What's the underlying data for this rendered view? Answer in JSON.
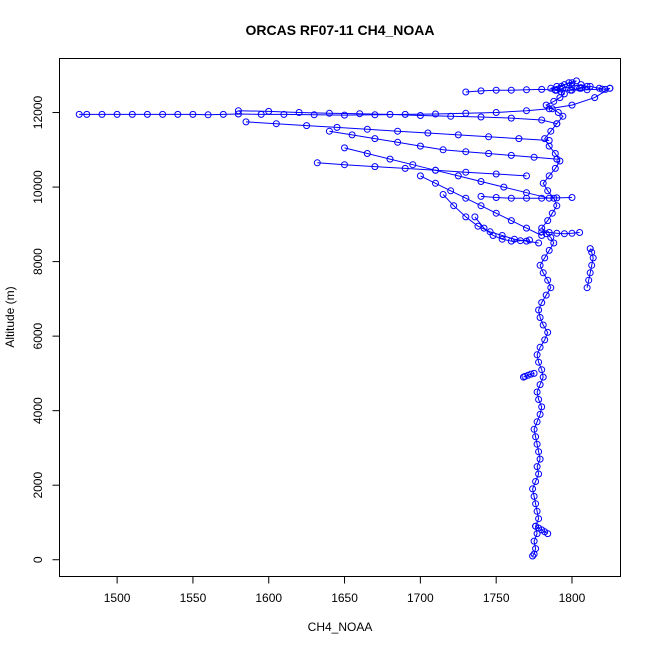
{
  "chart_data": {
    "type": "scatter",
    "title": "ORCAS RF07-11 CH4_NOAA",
    "xlabel": "CH4_NOAA",
    "ylabel": "Altitude (m)",
    "xlim": [
      1462,
      1832
    ],
    "ylim": [
      -450,
      13450
    ],
    "xticks": [
      1500,
      1550,
      1600,
      1650,
      1700,
      1750,
      1800
    ],
    "yticks": [
      0,
      2000,
      4000,
      6000,
      8000,
      10000,
      12000
    ],
    "grid": false,
    "legend": "none",
    "color": "#0000ff",
    "marker": "open-circle",
    "lines_connecting_points": true,
    "series": [
      {
        "x": [
          1774,
          1775,
          1776,
          1775,
          1777,
          1776,
          1778,
          1777,
          1776,
          1775,
          1774,
          1776,
          1778,
          1777,
          1779,
          1778,
          1777,
          1776,
          1775,
          1777,
          1779,
          1780,
          1778,
          1777,
          1779,
          1781,
          1780,
          1778,
          1777,
          1779,
          1782,
          1784,
          1781,
          1779,
          1778,
          1780,
          1783,
          1786,
          1784,
          1781,
          1779,
          1782,
          1785,
          1788,
          1786,
          1783,
          1780,
          1784,
          1787,
          1790,
          1788,
          1784,
          1781,
          1785,
          1789,
          1792,
          1789,
          1785,
          1782,
          1786,
          1790,
          1794,
          1791,
          1787,
          1783,
          1788,
          1792,
          1795,
          1793,
          1789,
          1786,
          1790,
          1795,
          1800,
          1803,
          1798,
          1793,
          1789,
          1794,
          1800,
          1806,
          1810,
          1805,
          1799,
          1806,
          1812,
          1818,
          1822,
          1825
        ],
        "y": [
          100,
          150,
          300,
          500,
          700,
          900,
          1100,
          1300,
          1500,
          1700,
          1900,
          2100,
          2300,
          2500,
          2700,
          2900,
          3100,
          3300,
          3500,
          3700,
          3900,
          4100,
          4300,
          4500,
          4700,
          4900,
          5100,
          5300,
          5500,
          5700,
          5900,
          6100,
          6300,
          6500,
          6700,
          6900,
          7100,
          7300,
          7500,
          7700,
          7900,
          8100,
          8300,
          8500,
          8650,
          8750,
          8900,
          9100,
          9300,
          9500,
          9700,
          9900,
          10100,
          10300,
          10500,
          10700,
          10900,
          11100,
          11300,
          11500,
          11700,
          11900,
          12000,
          12100,
          12200,
          12300,
          12400,
          12500,
          12550,
          12600,
          12650,
          12700,
          12750,
          12800,
          12850,
          12800,
          12700,
          12600,
          12650,
          12700,
          12750,
          12700,
          12650,
          12600,
          12650,
          12700,
          12650,
          12620,
          12650
        ]
      },
      {
        "x": [
          1825,
          1815,
          1800,
          1785,
          1770,
          1750,
          1730,
          1710,
          1690,
          1670,
          1650,
          1630,
          1610,
          1595,
          1580,
          1570,
          1560,
          1550,
          1540,
          1530,
          1520,
          1510,
          1500,
          1490,
          1480,
          1475
        ],
        "y": [
          12650,
          12400,
          12200,
          12100,
          12050,
          12000,
          11980,
          11960,
          11950,
          11940,
          11930,
          11940,
          11950,
          11950,
          11960,
          11950,
          11940,
          11950,
          11950,
          11950,
          11950,
          11950,
          11950,
          11950,
          11950,
          11950
        ]
      },
      {
        "x": [
          1580,
          1600,
          1620,
          1640,
          1660,
          1680,
          1700,
          1720,
          1740,
          1760,
          1780,
          1790
        ],
        "y": [
          12050,
          12030,
          12000,
          11980,
          11970,
          11950,
          11920,
          11900,
          11880,
          11850,
          11800,
          11700
        ]
      },
      {
        "x": [
          1585,
          1605,
          1625,
          1645,
          1665,
          1685,
          1705,
          1725,
          1745,
          1765,
          1785
        ],
        "y": [
          11750,
          11700,
          11650,
          11600,
          11550,
          11500,
          11450,
          11400,
          11350,
          11300,
          11250
        ]
      },
      {
        "x": [
          1640,
          1655,
          1670,
          1685,
          1700,
          1715,
          1730,
          1745,
          1760,
          1775,
          1790
        ],
        "y": [
          11500,
          11400,
          11300,
          11200,
          11100,
          11000,
          10950,
          10900,
          10850,
          10800,
          10750
        ]
      },
      {
        "x": [
          1632,
          1650,
          1670,
          1690,
          1710,
          1730,
          1750,
          1770
        ],
        "y": [
          10650,
          10600,
          10550,
          10500,
          10450,
          10400,
          10350,
          10300
        ]
      },
      {
        "x": [
          1650,
          1665,
          1680,
          1695,
          1710,
          1725,
          1740,
          1755,
          1770,
          1785
        ],
        "y": [
          11050,
          10900,
          10750,
          10600,
          10450,
          10300,
          10150,
          10000,
          9850,
          9700
        ]
      },
      {
        "x": [
          1700,
          1710,
          1720,
          1730,
          1740,
          1750,
          1760,
          1770,
          1780
        ],
        "y": [
          10300,
          10100,
          9900,
          9700,
          9500,
          9300,
          9100,
          8900,
          8700
        ]
      },
      {
        "x": [
          1715,
          1722,
          1730,
          1738,
          1746,
          1754,
          1762,
          1770,
          1778
        ],
        "y": [
          9800,
          9500,
          9200,
          8950,
          8800,
          8700,
          8600,
          8550,
          8500
        ]
      },
      {
        "x": [
          1736,
          1742,
          1748,
          1754,
          1760,
          1766,
          1772
        ],
        "y": [
          9200,
          8900,
          8700,
          8600,
          8550,
          8560,
          8580
        ]
      },
      {
        "x": [
          1740,
          1750,
          1760,
          1770,
          1780,
          1790,
          1800
        ],
        "y": [
          9750,
          9720,
          9700,
          9700,
          9700,
          9710,
          9720
        ]
      },
      {
        "x": [
          1780,
          1785,
          1790,
          1795,
          1800,
          1805
        ],
        "y": [
          8800,
          8780,
          8760,
          8750,
          8760,
          8780
        ]
      },
      {
        "x": [
          1810,
          1811,
          1812,
          1813,
          1814,
          1813,
          1812
        ],
        "y": [
          7300,
          7500,
          7700,
          7900,
          8100,
          8250,
          8350
        ]
      },
      {
        "x": [
          1775,
          1773,
          1771,
          1769,
          1768
        ],
        "y": [
          5000,
          4980,
          4950,
          4920,
          4900
        ]
      },
      {
        "x": [
          1776,
          1778,
          1780,
          1782,
          1784
        ],
        "y": [
          900,
          850,
          800,
          750,
          700
        ]
      },
      {
        "x": [
          1730,
          1740,
          1750,
          1760,
          1770,
          1780,
          1790,
          1800,
          1810,
          1820
        ],
        "y": [
          12550,
          12580,
          12600,
          12600,
          12610,
          12620,
          12600,
          12600,
          12610,
          12630
        ]
      }
    ]
  }
}
